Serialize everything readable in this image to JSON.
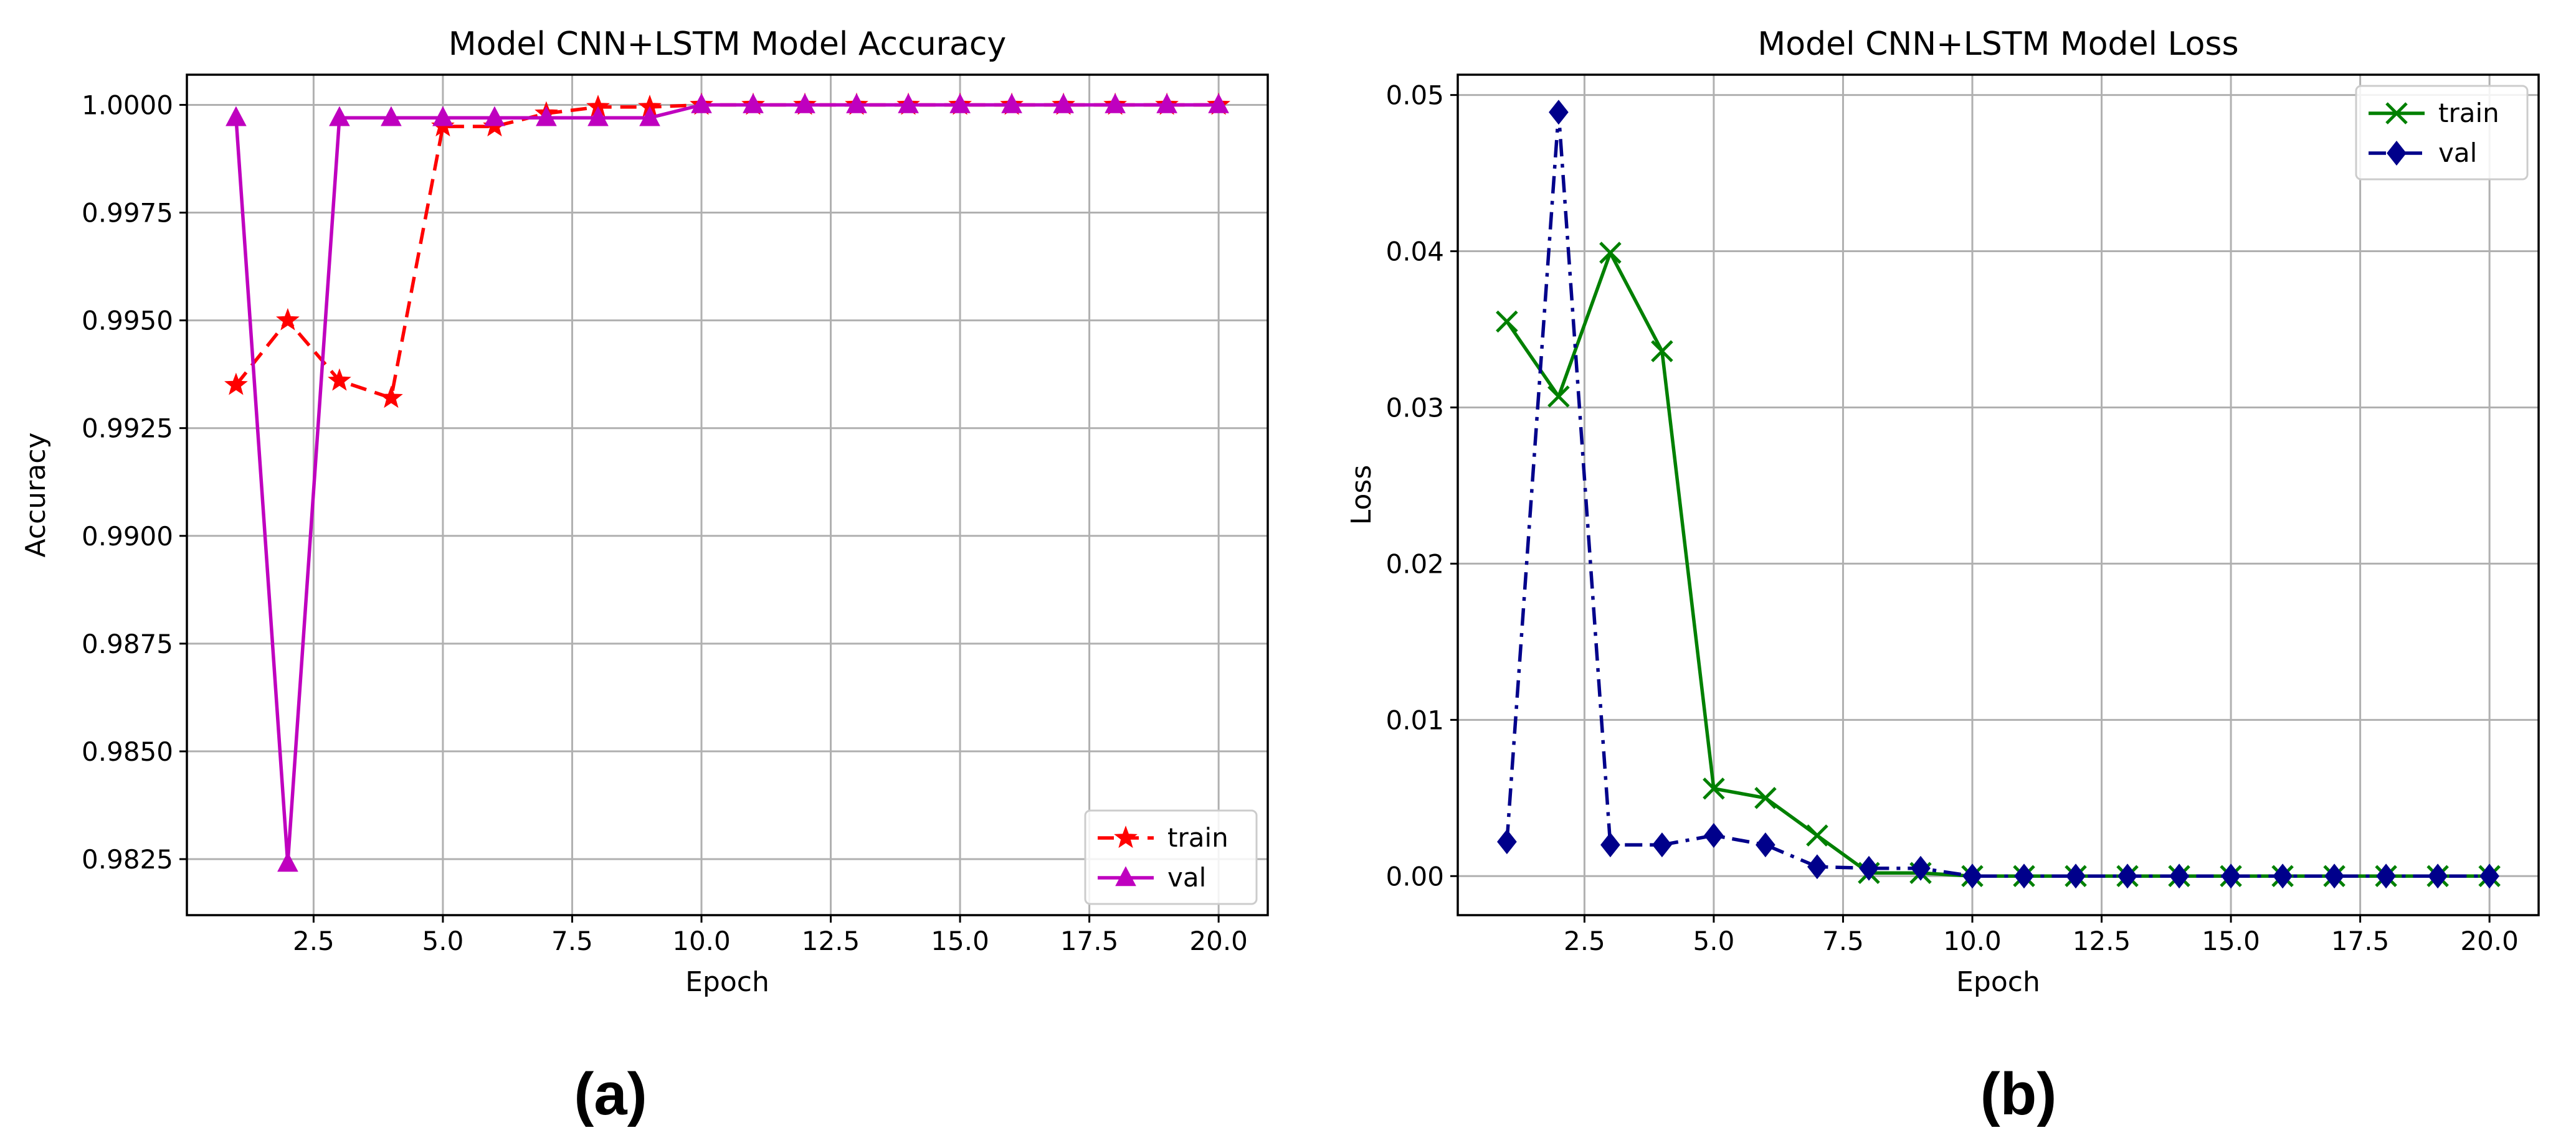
{
  "chart_data": [
    {
      "type": "line",
      "title": "Model CNN+LSTM Model Accuracy",
      "xlabel": "Epoch",
      "ylabel": "Accuracy",
      "xlim": [
        0.05,
        20.95
      ],
      "ylim": [
        0.9812,
        1.0007
      ],
      "xticks": [
        2.5,
        5.0,
        7.5,
        10.0,
        12.5,
        15.0,
        17.5,
        20.0
      ],
      "xtick_labels": [
        "2.5",
        "5.0",
        "7.5",
        "10.0",
        "12.5",
        "15.0",
        "17.5",
        "20.0"
      ],
      "yticks": [
        0.9825,
        0.985,
        0.9875,
        0.99,
        0.9925,
        0.995,
        0.9975,
        1.0
      ],
      "ytick_labels": [
        "0.9825",
        "0.9850",
        "0.9875",
        "0.9900",
        "0.9925",
        "0.9950",
        "0.9975",
        "1.0000"
      ],
      "grid": true,
      "legend_position": "lower-right",
      "x": [
        1,
        2,
        3,
        4,
        5,
        6,
        7,
        8,
        9,
        10,
        11,
        12,
        13,
        14,
        15,
        16,
        17,
        18,
        19,
        20
      ],
      "series": [
        {
          "name": "train",
          "color": "#ff0000",
          "line_style": "dashed",
          "marker": "star",
          "values": [
            0.9935,
            0.995,
            0.9936,
            0.9932,
            0.9995,
            0.9995,
            0.9998,
            0.99995,
            0.99995,
            1.0,
            1.0,
            1.0,
            1.0,
            1.0,
            1.0,
            1.0,
            1.0,
            1.0,
            1.0,
            1.0
          ]
        },
        {
          "name": "val",
          "color": "#bf00bf",
          "line_style": "solid",
          "marker": "triangle-up",
          "values": [
            0.9997,
            0.9824,
            0.9997,
            0.9997,
            0.9997,
            0.9997,
            0.9997,
            0.9997,
            0.9997,
            1.0,
            1.0,
            1.0,
            1.0,
            1.0,
            1.0,
            1.0,
            1.0,
            1.0,
            1.0,
            1.0
          ]
        }
      ],
      "panel_label": "(a)"
    },
    {
      "type": "line",
      "title": "Model CNN+LSTM Model Loss",
      "xlabel": "Epoch",
      "ylabel": "Loss",
      "xlim": [
        0.05,
        20.95
      ],
      "ylim": [
        -0.0025,
        0.0513
      ],
      "xticks": [
        2.5,
        5.0,
        7.5,
        10.0,
        12.5,
        15.0,
        17.5,
        20.0
      ],
      "xtick_labels": [
        "2.5",
        "5.0",
        "7.5",
        "10.0",
        "12.5",
        "15.0",
        "17.5",
        "20.0"
      ],
      "yticks": [
        0.0,
        0.01,
        0.02,
        0.03,
        0.04,
        0.05
      ],
      "ytick_labels": [
        "0.00",
        "0.01",
        "0.02",
        "0.03",
        "0.04",
        "0.05"
      ],
      "grid": true,
      "legend_position": "upper-right",
      "x": [
        1,
        2,
        3,
        4,
        5,
        6,
        7,
        8,
        9,
        10,
        11,
        12,
        13,
        14,
        15,
        16,
        17,
        18,
        19,
        20
      ],
      "series": [
        {
          "name": "train",
          "color": "#008000",
          "line_style": "solid",
          "marker": "x",
          "values": [
            0.0355,
            0.0307,
            0.0399,
            0.0336,
            0.0056,
            0.005,
            0.0026,
            0.0002,
            0.0002,
            0.0,
            0.0,
            0.0,
            0.0,
            0.0,
            0.0,
            0.0,
            0.0,
            0.0,
            0.0,
            0.0
          ]
        },
        {
          "name": "val",
          "color": "#00008b",
          "line_style": "dashdot",
          "marker": "diamond",
          "values": [
            0.0022,
            0.0489,
            0.002,
            0.002,
            0.0026,
            0.002,
            0.0006,
            0.0005,
            0.0005,
            0.0,
            0.0,
            0.0,
            0.0,
            0.0,
            0.0,
            0.0,
            0.0,
            0.0,
            0.0,
            0.0
          ]
        }
      ],
      "panel_label": "(b)"
    }
  ]
}
